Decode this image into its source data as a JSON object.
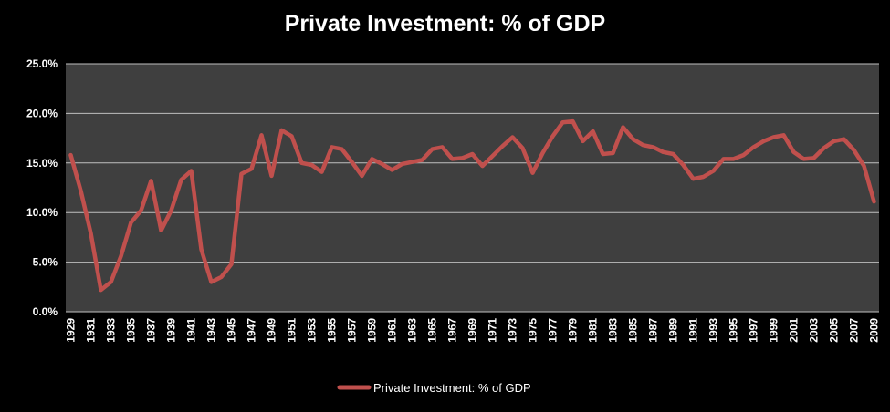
{
  "chart_data": {
    "type": "line",
    "title": "Private Investment: % of GDP",
    "xlabel": "",
    "ylabel": "",
    "ylim": [
      0,
      25
    ],
    "y_ticks": [
      "0.0%",
      "5.0%",
      "10.0%",
      "15.0%",
      "20.0%",
      "25.0%"
    ],
    "y_tick_values": [
      0,
      5,
      10,
      15,
      20,
      25
    ],
    "x_tick_labels": [
      "1929",
      "1931",
      "1933",
      "1935",
      "1937",
      "1939",
      "1941",
      "1943",
      "1945",
      "1947",
      "1949",
      "1951",
      "1953",
      "1955",
      "1957",
      "1959",
      "1961",
      "1963",
      "1965",
      "1967",
      "1969",
      "1971",
      "1973",
      "1975",
      "1977",
      "1979",
      "1981",
      "1983",
      "1985",
      "1987",
      "1989",
      "1991",
      "1993",
      "1995",
      "1997",
      "1999",
      "2001",
      "2003",
      "2005",
      "2007",
      "2009"
    ],
    "legend_position": "bottom",
    "grid": true,
    "series": [
      {
        "name": "Private Investment: % of GDP",
        "color": "#c0504d",
        "x": [
          1929,
          1930,
          1931,
          1932,
          1933,
          1934,
          1935,
          1936,
          1937,
          1938,
          1939,
          1940,
          1941,
          1942,
          1943,
          1944,
          1945,
          1946,
          1947,
          1948,
          1949,
          1950,
          1951,
          1952,
          1953,
          1954,
          1955,
          1956,
          1957,
          1958,
          1959,
          1960,
          1961,
          1962,
          1963,
          1964,
          1965,
          1966,
          1967,
          1968,
          1969,
          1970,
          1971,
          1972,
          1973,
          1974,
          1975,
          1976,
          1977,
          1978,
          1979,
          1980,
          1981,
          1982,
          1983,
          1984,
          1985,
          1986,
          1987,
          1988,
          1989,
          1990,
          1991,
          1992,
          1993,
          1994,
          1995,
          1996,
          1997,
          1998,
          1999,
          2000,
          2001,
          2002,
          2003,
          2004,
          2005,
          2006,
          2007,
          2008,
          2009
        ],
        "values": [
          15.8,
          12.2,
          7.9,
          2.2,
          3.0,
          5.6,
          9.0,
          10.2,
          13.2,
          8.2,
          10.2,
          13.3,
          14.2,
          6.3,
          3.0,
          3.5,
          4.8,
          13.9,
          14.4,
          17.8,
          13.7,
          18.3,
          17.7,
          15.0,
          14.8,
          14.1,
          16.6,
          16.4,
          15.1,
          13.7,
          15.4,
          14.9,
          14.3,
          14.9,
          15.1,
          15.3,
          16.4,
          16.6,
          15.4,
          15.5,
          15.9,
          14.7,
          15.7,
          16.7,
          17.6,
          16.5,
          14.0,
          16.0,
          17.7,
          19.1,
          19.2,
          17.2,
          18.2,
          15.9,
          16.0,
          18.6,
          17.4,
          16.8,
          16.6,
          16.1,
          15.9,
          14.8,
          13.4,
          13.6,
          14.2,
          15.4,
          15.4,
          15.8,
          16.6,
          17.2,
          17.6,
          17.8,
          16.1,
          15.4,
          15.5,
          16.5,
          17.2,
          17.4,
          16.3,
          14.7,
          11.1
        ]
      }
    ]
  }
}
